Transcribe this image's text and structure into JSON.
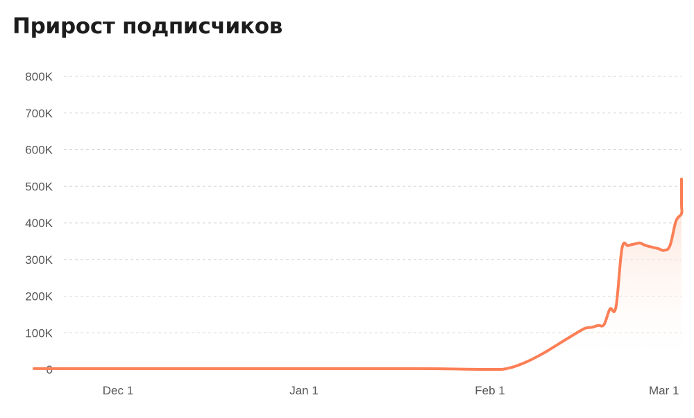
{
  "title": "Прирост подписчиков",
  "colors": {
    "line": "#fc7f56",
    "area_top": "#fdd4c2",
    "grid": "#d6d6d6",
    "tick_text": "#555555",
    "title_text": "#1c1c1c"
  },
  "chart_data": {
    "type": "area",
    "title": "Прирост подписчиков",
    "xlabel": "",
    "ylabel": "",
    "xlim": [
      "2023-11-17",
      "2023-03-03"
    ],
    "ylim": [
      0,
      800000
    ],
    "x_ticks": [
      {
        "date": "2023-12-01",
        "label": "Dec 1"
      },
      {
        "date": "2024-01-01",
        "label": "Jan 1"
      },
      {
        "date": "2024-02-01",
        "label": "Feb 1"
      },
      {
        "date": "2024-03-01",
        "label": "Mar 1"
      }
    ],
    "y_ticks": [
      {
        "value": 0,
        "label": "0"
      },
      {
        "value": 100000,
        "label": "100K"
      },
      {
        "value": 200000,
        "label": "200K"
      },
      {
        "value": 300000,
        "label": "300K"
      },
      {
        "value": 400000,
        "label": "400K"
      },
      {
        "value": 500000,
        "label": "500K"
      },
      {
        "value": 600000,
        "label": "600K"
      },
      {
        "value": 700000,
        "label": "700K"
      },
      {
        "value": 800000,
        "label": "800K"
      }
    ],
    "grid": true,
    "grid_style": "dashed-horizontal",
    "legend": "none",
    "series": [
      {
        "points": [
          {
            "x": "2023-11-17",
            "y": 2000
          },
          {
            "x": "2023-12-01",
            "y": 2000
          },
          {
            "x": "2024-01-01",
            "y": 2000
          },
          {
            "x": "2024-01-20",
            "y": 2000
          },
          {
            "x": "2024-02-01",
            "y": 0
          },
          {
            "x": "2024-02-04",
            "y": 3000
          },
          {
            "x": "2024-02-07",
            "y": 20000
          },
          {
            "x": "2024-02-10",
            "y": 45000
          },
          {
            "x": "2024-02-13",
            "y": 75000
          },
          {
            "x": "2024-02-16",
            "y": 105000
          },
          {
            "x": "2024-02-17",
            "y": 113000
          },
          {
            "x": "2024-02-18",
            "y": 115000
          },
          {
            "x": "2024-02-19",
            "y": 120000
          },
          {
            "x": "2024-02-20",
            "y": 122000
          },
          {
            "x": "2024-02-21",
            "y": 165000
          },
          {
            "x": "2024-02-22",
            "y": 170000
          },
          {
            "x": "2024-02-23",
            "y": 330000
          },
          {
            "x": "2024-02-24",
            "y": 338000
          },
          {
            "x": "2024-02-25",
            "y": 342000
          },
          {
            "x": "2024-02-26",
            "y": 345000
          },
          {
            "x": "2024-02-27",
            "y": 338000
          },
          {
            "x": "2024-02-29",
            "y": 330000
          },
          {
            "x": "2024-03-01",
            "y": 325000
          },
          {
            "x": "2024-03-02",
            "y": 338000
          },
          {
            "x": "2024-03-03",
            "y": 405000
          },
          {
            "x": "2024-03-04",
            "y": 425000
          },
          {
            "x": "2024-03-05",
            "y": 450000
          },
          {
            "x": "2024-03-06",
            "y": 520000
          }
        ]
      }
    ]
  }
}
